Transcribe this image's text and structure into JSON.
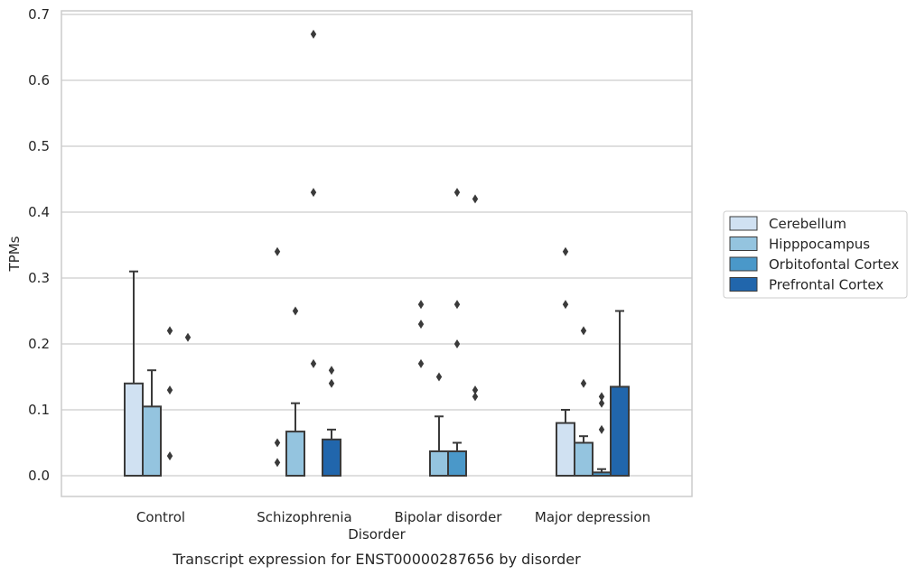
{
  "chart_data": {
    "type": "bar",
    "xlabel": "Disorder",
    "ylabel": "TPMs",
    "caption": "Transcript expression for ENST00000287656 by disorder",
    "categories": [
      "Control",
      "Schizophrenia",
      "Bipolar disorder",
      "Major depression"
    ],
    "ylim": [
      -0.03,
      0.705
    ],
    "yticks": [
      "0.0",
      "0.1",
      "0.2",
      "0.3",
      "0.4",
      "0.5",
      "0.6",
      "0.7"
    ],
    "grid": true,
    "legend_position": "right",
    "series": [
      {
        "name": "Cerebellum",
        "color": "#d0e1f2",
        "values": [
          0.14,
          0.0,
          0.0,
          0.08
        ],
        "q3": [
          0.14,
          0.0,
          0.0,
          0.08
        ],
        "whisker_max": [
          0.31,
          0.0,
          0.0,
          0.1
        ],
        "outliers": [
          [],
          [
            0.34,
            0.05,
            0.02
          ],
          [
            0.26,
            0.23,
            0.17
          ],
          [
            0.34,
            0.26
          ]
        ]
      },
      {
        "name": "Hipppocampus",
        "color": "#94c4df",
        "values": [
          0.105,
          0.067,
          0.037,
          0.05
        ],
        "q3": [
          0.105,
          0.067,
          0.037,
          0.05
        ],
        "whisker_max": [
          0.16,
          0.11,
          0.09,
          0.06
        ],
        "outliers": [
          [],
          [
            0.25
          ],
          [
            0.15
          ],
          [
            0.22,
            0.14
          ]
        ]
      },
      {
        "name": "Orbitofontal Cortex",
        "color": "#4a98c9",
        "values": [
          0.0,
          0.0,
          0.037,
          0.005
        ],
        "q3": [
          0.0,
          0.0,
          0.037,
          0.005
        ],
        "whisker_max": [
          0.0,
          0.0,
          0.05,
          0.01
        ],
        "outliers": [
          [
            0.22,
            0.13,
            0.03
          ],
          [
            0.67,
            0.43,
            0.17
          ],
          [
            0.43,
            0.26,
            0.2
          ],
          [
            0.12,
            0.11,
            0.07
          ]
        ]
      },
      {
        "name": "Prefrontal Cortex",
        "color": "#2166ac",
        "values": [
          0.0,
          0.055,
          0.0,
          0.135
        ],
        "q3": [
          0.0,
          0.055,
          0.0,
          0.135
        ],
        "whisker_max": [
          0.0,
          0.07,
          0.0,
          0.25
        ],
        "outliers": [
          [
            0.21
          ],
          [
            0.16,
            0.14
          ],
          [
            0.42,
            0.13,
            0.12
          ],
          []
        ]
      }
    ]
  }
}
